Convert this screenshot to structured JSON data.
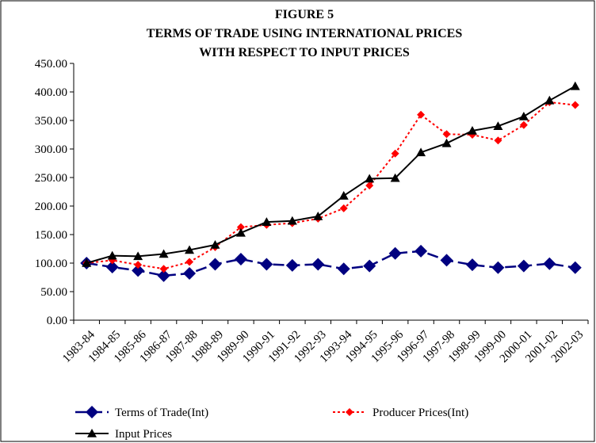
{
  "chart_data": {
    "type": "line",
    "title": [
      "FIGURE 5",
      "TERMS OF TRADE USING INTERNATIONAL PRICES",
      "WITH RESPECT TO INPUT PRICES"
    ],
    "categories": [
      "1983-84",
      "1984-85",
      "1985-86",
      "1986-87",
      "1987-88",
      "1988-89",
      "1989-90",
      "1990-91",
      "1991-92",
      "1992-93",
      "1993-94",
      "1994-95",
      "1995-96",
      "1996-97",
      "1997-98",
      "1998-99",
      "1999-00",
      "2000-01",
      "2001-02",
      "2002-03"
    ],
    "series": [
      {
        "name": "Terms of Trade(Int)",
        "color": "#000080",
        "values": [
          100,
          93,
          87,
          78,
          82,
          98,
          107,
          98,
          96,
          98,
          90,
          95,
          117,
          121,
          105,
          97,
          92,
          95,
          99,
          92
        ]
      },
      {
        "name": "Producer Prices(Int)",
        "color": "#ff0000",
        "values": [
          100,
          105,
          97,
          90,
          102,
          128,
          163,
          167,
          170,
          178,
          196,
          236,
          292,
          360,
          326,
          325,
          315,
          342,
          382,
          377
        ]
      },
      {
        "name": "Input Prices",
        "color": "#000000",
        "values": [
          100,
          113,
          112,
          116,
          123,
          132,
          153,
          172,
          174,
          182,
          218,
          248,
          249,
          294,
          310,
          332,
          340,
          357,
          385,
          410
        ]
      }
    ],
    "ylim": [
      0,
      450
    ],
    "yticks": [
      {
        "value": 0,
        "label": "0.00"
      },
      {
        "value": 50,
        "label": "50.00"
      },
      {
        "value": 100,
        "label": "100.00"
      },
      {
        "value": 150,
        "label": "150.00"
      },
      {
        "value": 200,
        "label": "200.00"
      },
      {
        "value": 250,
        "label": "250.00"
      },
      {
        "value": 300,
        "label": "300.00"
      },
      {
        "value": 350,
        "label": "350.00"
      },
      {
        "value": 400,
        "label": "400.00"
      },
      {
        "value": 450,
        "label": "450.00"
      }
    ],
    "legend": "bottom"
  }
}
